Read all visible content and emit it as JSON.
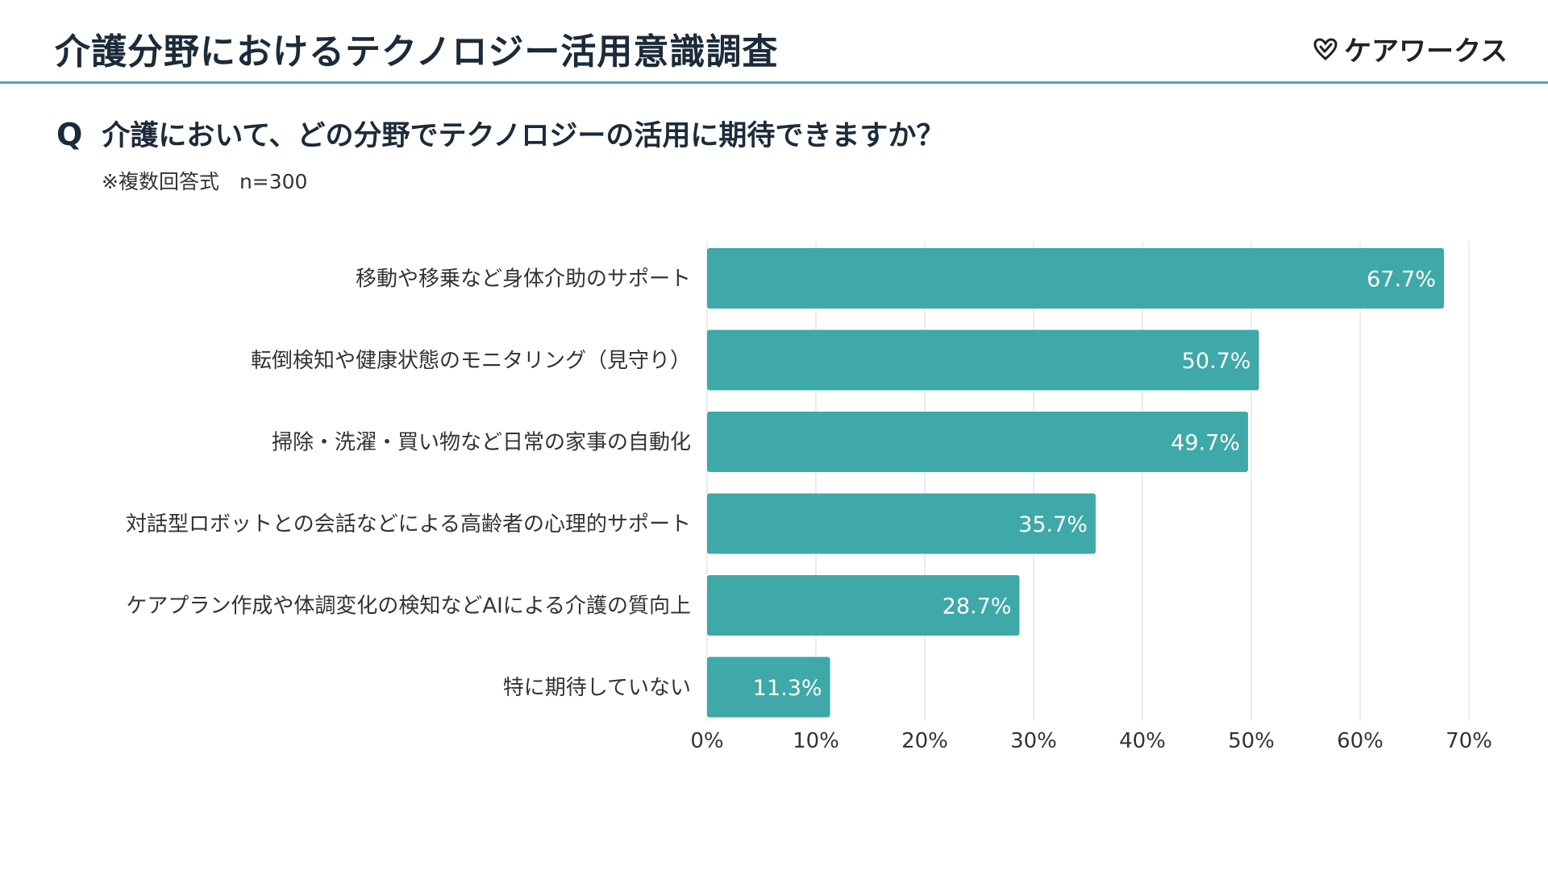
{
  "header": {
    "title": "介護分野におけるテクノロジー活用意識調査",
    "logo_text": "ケアワークス",
    "logo_icon": "heart-check-icon"
  },
  "question": {
    "mark": "Q",
    "text": "介護において、どの分野でテクノロジーの活用に期待できますか？",
    "note": "※複数回答式　n=300"
  },
  "colors": {
    "bar": "#3fa8a8",
    "grid": "#e6e6e6",
    "header_rule": "#5b9bd5"
  },
  "chart_data": {
    "type": "bar",
    "orientation": "horizontal",
    "categories": [
      "移動や移乗など身体介助のサポート",
      "転倒検知や健康状態のモニタリング（見守り）",
      "掃除・洗濯・買い物など日常の家事の自動化",
      "対話型ロボットとの会話などによる高齢者の心理的サポート",
      "ケアプラン作成や体調変化の検知などAIによる介護の質向上",
      "特に期待していない"
    ],
    "values": [
      67.7,
      50.7,
      49.7,
      35.7,
      28.7,
      11.3
    ],
    "value_labels": [
      "67.7%",
      "50.7%",
      "49.7%",
      "35.7%",
      "28.7%",
      "11.3%"
    ],
    "xlim": [
      0,
      70
    ],
    "ticks": [
      0,
      10,
      20,
      30,
      40,
      50,
      60,
      70
    ],
    "tick_labels": [
      "0%",
      "10%",
      "20%",
      "30%",
      "40%",
      "50%",
      "60%",
      "70%"
    ],
    "grid": true,
    "legend": false
  }
}
